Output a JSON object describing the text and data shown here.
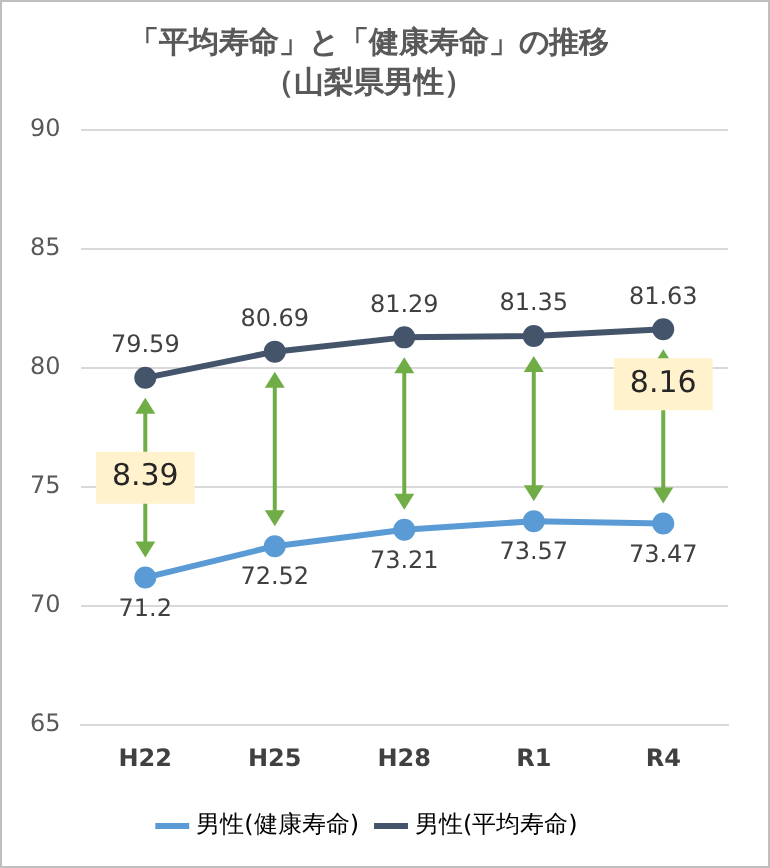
{
  "chart_data": {
    "type": "line",
    "title": "「平均寿命」と「健康寿命」の推移",
    "subtitle": "（山梨県男性）",
    "categories": [
      "H22",
      "H25",
      "H28",
      "R1",
      "R4"
    ],
    "series": [
      {
        "name": "男性(健康寿命)",
        "color": "#5b9bd5",
        "values": [
          71.2,
          72.52,
          73.21,
          73.57,
          73.47
        ]
      },
      {
        "name": "男性(平均寿命)",
        "color": "#44546a",
        "values": [
          79.59,
          80.69,
          81.29,
          81.35,
          81.63
        ]
      }
    ],
    "ylim": [
      65,
      90
    ],
    "yticks": [
      65,
      70,
      75,
      80,
      85,
      90
    ],
    "grid": "y",
    "legend": "bottom",
    "marker": "circle",
    "data_labels": true,
    "annotations": [
      "8.39",
      "8.16"
    ]
  }
}
